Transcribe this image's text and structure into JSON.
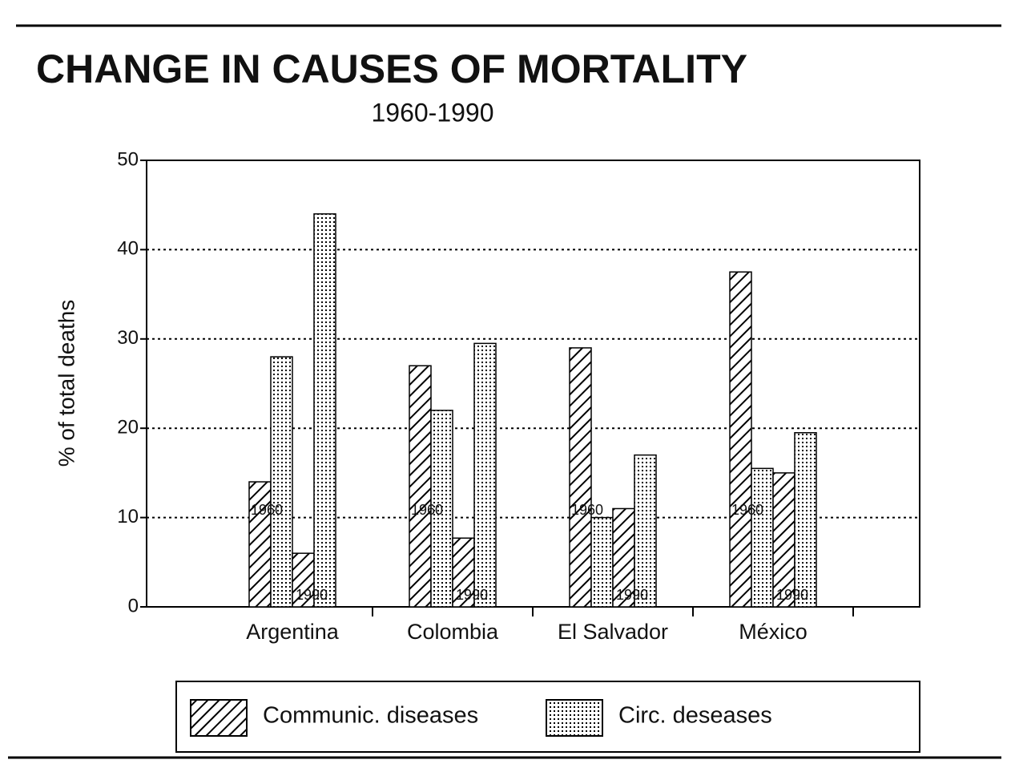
{
  "chart_data": {
    "type": "bar",
    "title": "CHANGE IN CAUSES OF MORTALITY",
    "subtitle": "1960-1990",
    "y_label": "% of total deaths",
    "categories": [
      "Argentina",
      "Colombia",
      "El Salvador",
      "México"
    ],
    "periods": [
      "1960",
      "1990"
    ],
    "series": [
      {
        "name": "Communic. diseases",
        "pattern": "hatch",
        "color": "#000000",
        "values": [
          [
            14,
            6
          ],
          [
            27,
            7.7
          ],
          [
            29,
            11
          ],
          [
            37.5,
            15
          ]
        ]
      },
      {
        "name": "Circ. deseases",
        "pattern": "dots",
        "color": "#000000",
        "values": [
          [
            28,
            44
          ],
          [
            22,
            29.5
          ],
          [
            10,
            17
          ],
          [
            15.5,
            19.5
          ]
        ]
      }
    ],
    "ylim": [
      0,
      50
    ],
    "yticks": [
      0,
      10,
      20,
      30,
      40,
      50
    ],
    "grid": true,
    "legend": "bottom"
  }
}
